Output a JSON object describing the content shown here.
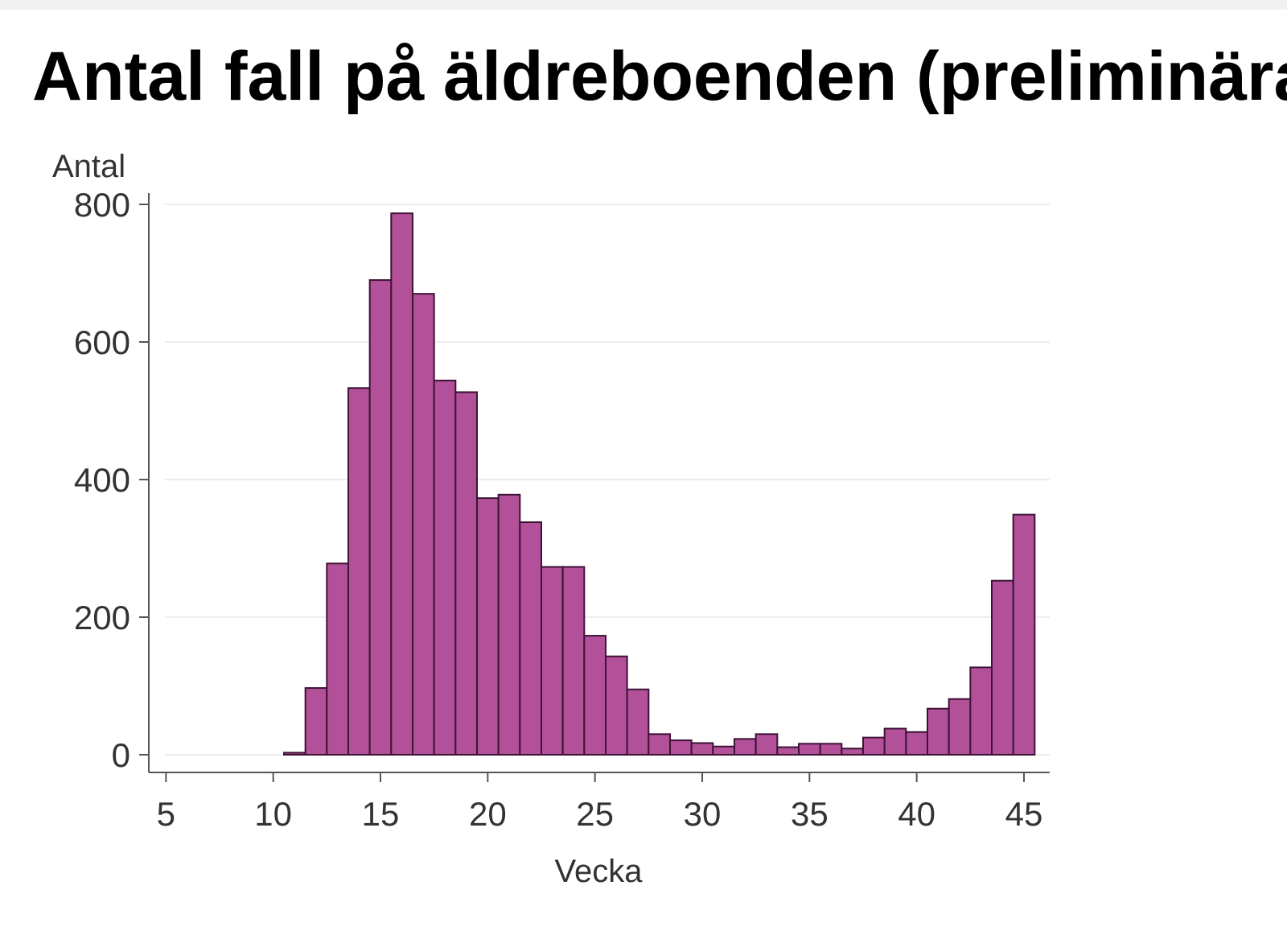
{
  "page": {
    "title": "Antal fall på äldreboenden (preliminära"
  },
  "chart_data": {
    "type": "bar",
    "title": "Antal fall på äldreboenden (preliminära",
    "ylabel": "Antal",
    "xlabel": "Vecka",
    "xlim": [
      4.2,
      46.2
    ],
    "ylim": [
      0,
      800
    ],
    "xticks": [
      5,
      10,
      15,
      20,
      25,
      30,
      35,
      40,
      45
    ],
    "yticks": [
      0,
      200,
      400,
      600,
      800
    ],
    "grid": "horizontal",
    "colors": {
      "bar_fill": "#b3509a",
      "bar_edge": "#3d1335",
      "grid": "#ededed",
      "axis": "#555555"
    },
    "weeks": [
      11,
      12,
      13,
      14,
      15,
      16,
      17,
      18,
      19,
      20,
      21,
      22,
      23,
      24,
      25,
      26,
      27,
      28,
      29,
      30,
      31,
      32,
      33,
      34,
      35,
      36,
      37,
      38,
      39,
      40,
      41,
      42,
      43,
      44,
      45
    ],
    "values": [
      3,
      97,
      278,
      533,
      690,
      787,
      670,
      544,
      527,
      373,
      378,
      338,
      273,
      273,
      173,
      143,
      95,
      30,
      21,
      17,
      12,
      23,
      30,
      11,
      16,
      16,
      9,
      25,
      38,
      33,
      67,
      81,
      127,
      253,
      349
    ]
  }
}
